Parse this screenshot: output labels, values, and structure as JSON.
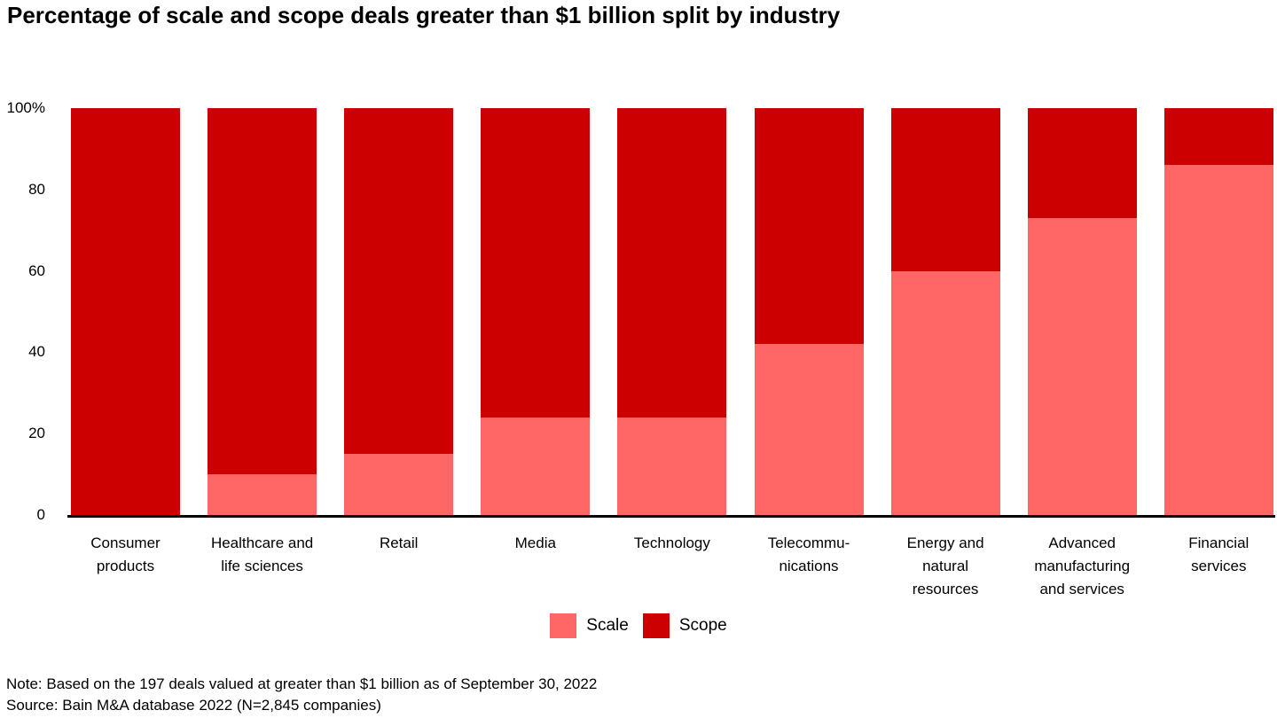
{
  "title": "Percentage of scale and scope deals greater than $1 billion split by industry",
  "y_axis": {
    "ticks": [
      "100%",
      "80",
      "60",
      "40",
      "20",
      "0"
    ]
  },
  "legend": {
    "items": [
      {
        "label": "Scale",
        "color": "#FF6666"
      },
      {
        "label": "Scope",
        "color": "#CC0000"
      }
    ]
  },
  "footer": {
    "note": "Note: Based on the 197 deals valued at greater than $1 billion as of September 30, 2022",
    "source": "Source: Bain M&A database 2022 (N=2,845 companies)"
  },
  "colors": {
    "scale": "#FF6666",
    "scope": "#CC0000",
    "axis_line": "#000000",
    "text": "#000000",
    "background": "#FFFFFF"
  },
  "chart_data": {
    "type": "bar",
    "stacked": true,
    "percent_stacked": true,
    "title": "Percentage of scale and scope deals greater than $1 billion split by industry",
    "xlabel": "",
    "ylabel": "",
    "unit": "%",
    "ylim": [
      0,
      100
    ],
    "y_ticks": [
      0,
      20,
      40,
      60,
      80,
      100
    ],
    "grid": false,
    "legend_position": "bottom",
    "categories": [
      "Consumer products",
      "Healthcare and life sciences",
      "Retail",
      "Media",
      "Technology",
      "Telecommunications",
      "Energy and natural resources",
      "Advanced manufacturing and services",
      "Financial services"
    ],
    "category_label_lines": [
      [
        "Consumer",
        "products"
      ],
      [
        "Healthcare and",
        "life sciences"
      ],
      [
        "Retail"
      ],
      [
        "Media"
      ],
      [
        "Technology"
      ],
      [
        "Telecommu-",
        "nications"
      ],
      [
        "Energy and",
        "natural",
        "resources"
      ],
      [
        "Advanced",
        "manufacturing",
        "and services"
      ],
      [
        "Financial",
        "services"
      ]
    ],
    "series": [
      {
        "name": "Scale",
        "color": "#FF6666",
        "values": [
          0,
          10,
          15,
          24,
          24,
          42,
          60,
          73,
          86
        ]
      },
      {
        "name": "Scope",
        "color": "#CC0000",
        "values": [
          100,
          90,
          85,
          76,
          76,
          58,
          40,
          27,
          14
        ]
      }
    ]
  }
}
